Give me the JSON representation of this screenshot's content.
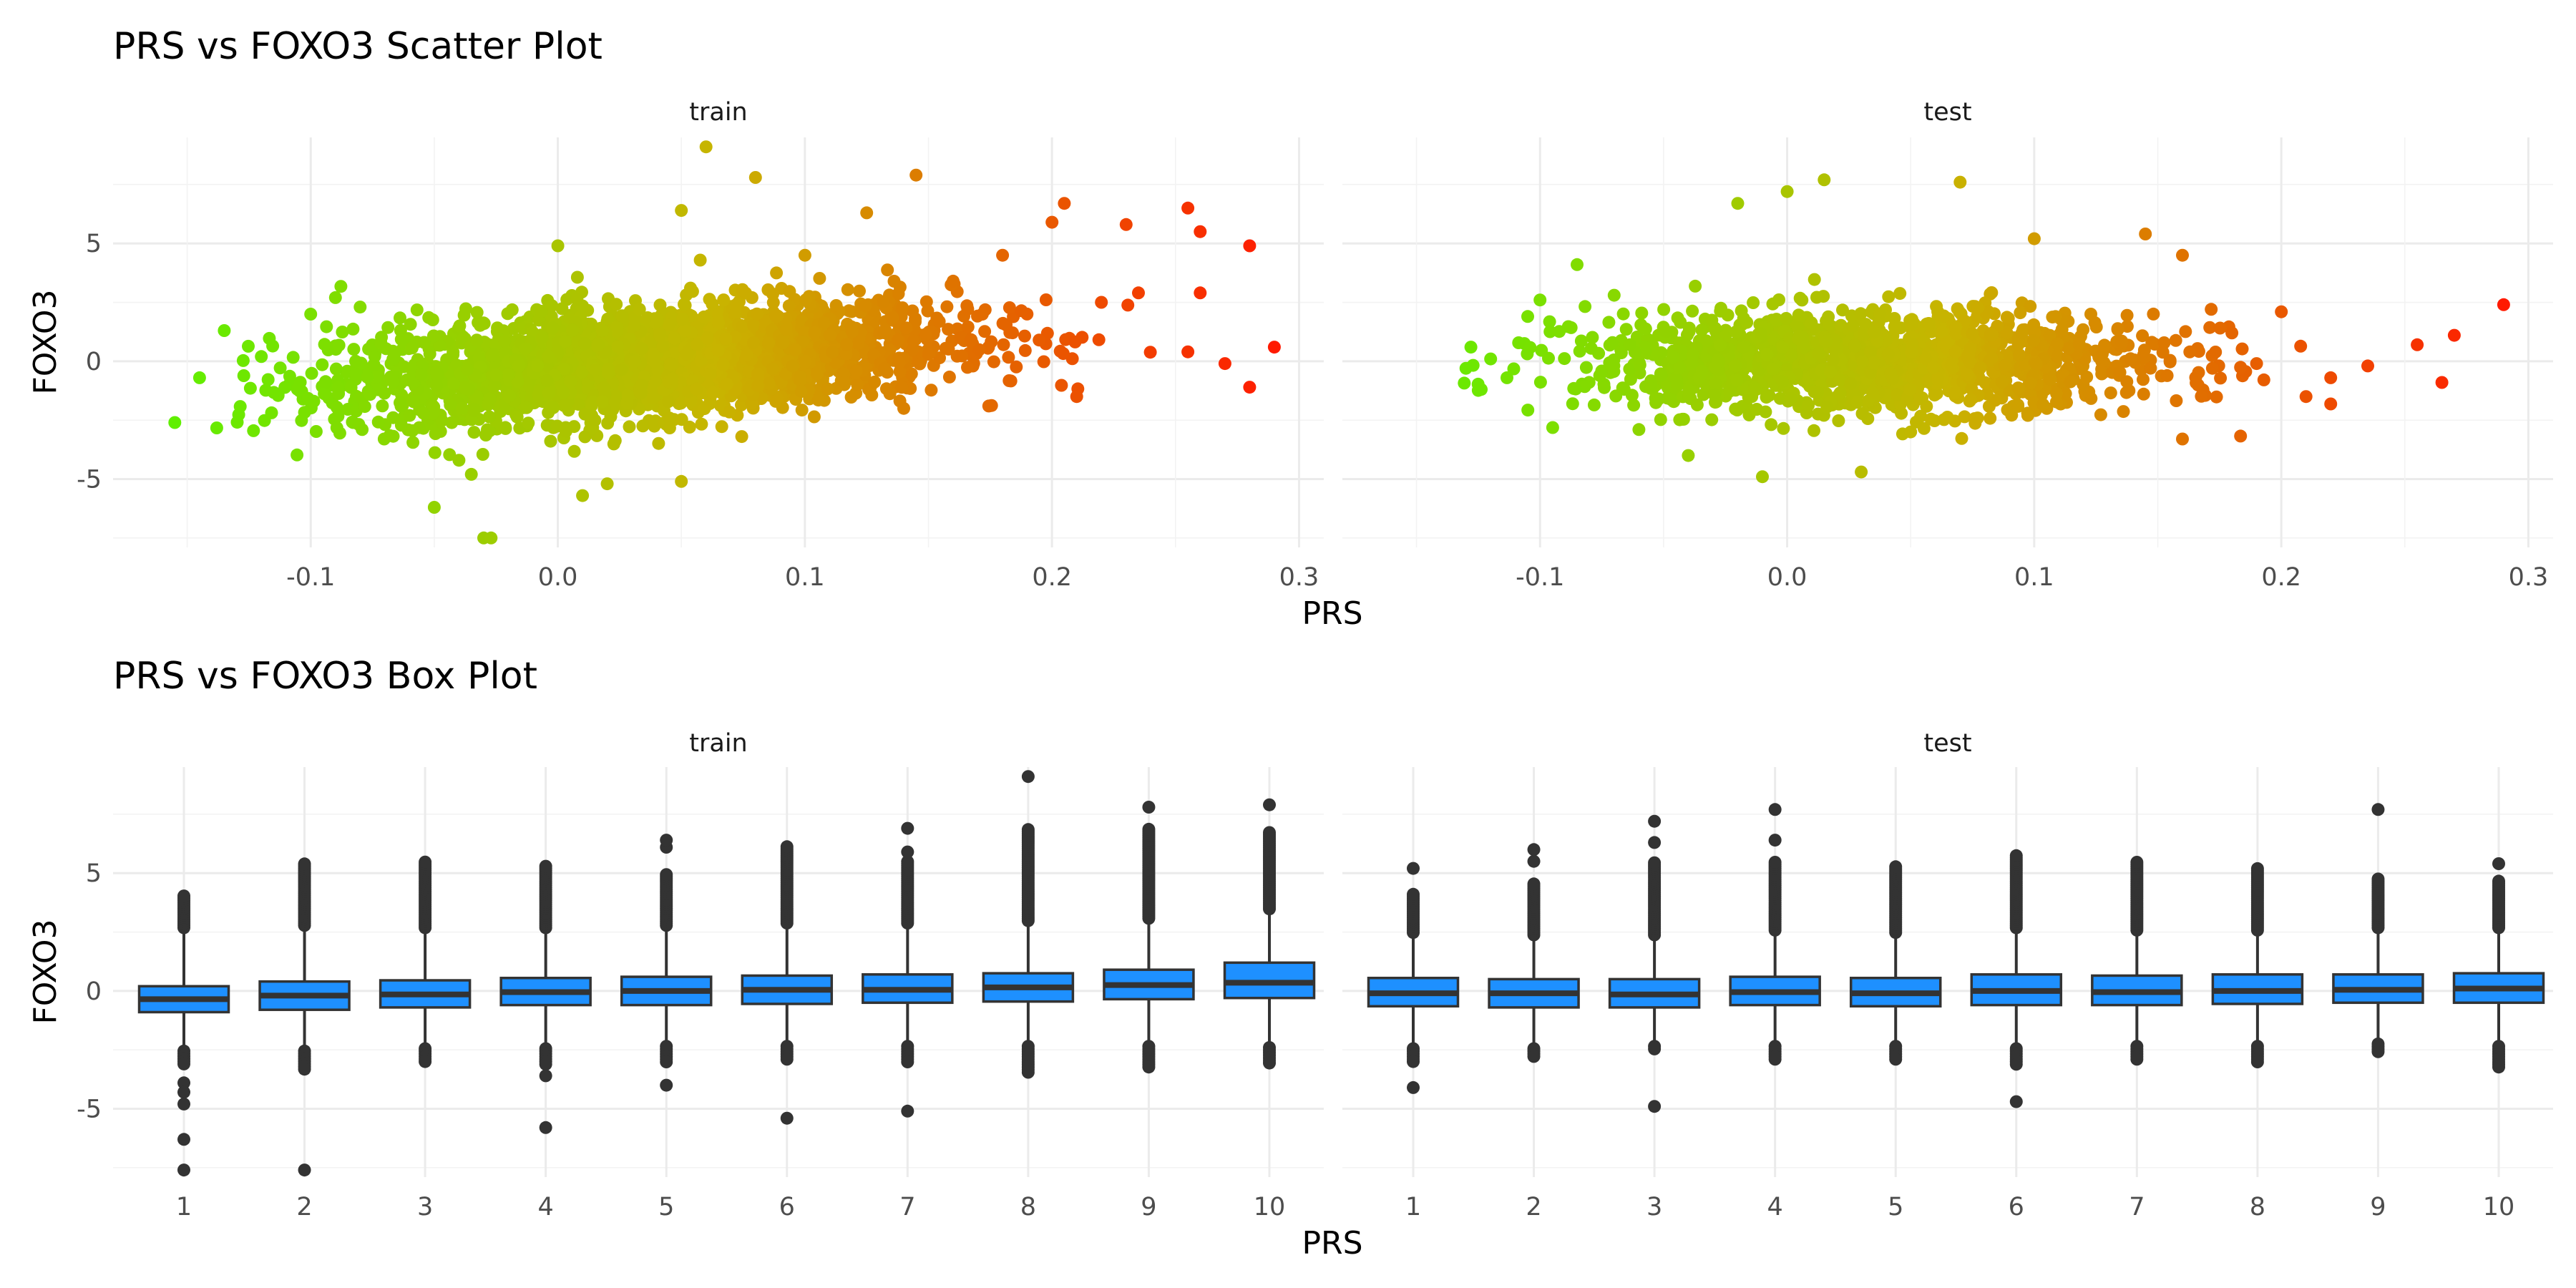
{
  "chart_data": [
    {
      "type": "scatter",
      "title": "PRS vs FOXO3 Scatter Plot",
      "xlabel": "PRS",
      "ylabel": "FOXO3",
      "facets": [
        "train",
        "test"
      ],
      "xlim": [
        -0.18,
        0.31
      ],
      "ylim": [
        -7.9,
        9.5
      ],
      "x_ticks": [
        -0.1,
        0.0,
        0.1,
        0.2,
        0.3
      ],
      "x_tick_labels": [
        "-0.1",
        "0.0",
        "0.1",
        "0.2",
        "0.3"
      ],
      "y_ticks": [
        -5,
        0,
        5
      ],
      "y_tick_labels": [
        "-5",
        "0",
        "5"
      ],
      "color_scale": {
        "low": "#5ef000",
        "mid": "#c8b400",
        "high": "#ff1a00",
        "range": [
          -0.16,
          0.29
        ]
      },
      "grid": true,
      "legend": "none",
      "series": [
        {
          "facet": "train",
          "points": [
            [
              -0.155,
              -2.6
            ],
            [
              -0.145,
              -0.7
            ],
            [
              -0.135,
              1.3
            ],
            [
              -0.1,
              2.0
            ],
            [
              -0.09,
              2.7
            ],
            [
              -0.05,
              -6.2
            ],
            [
              -0.035,
              -4.8
            ],
            [
              -0.03,
              -7.5
            ],
            [
              -0.027,
              -7.5
            ],
            [
              -0.04,
              -4.2
            ],
            [
              0.01,
              -5.7
            ],
            [
              0.02,
              -5.2
            ],
            [
              0.05,
              -5.1
            ],
            [
              0.06,
              9.1
            ],
            [
              0.08,
              7.8
            ],
            [
              0.125,
              6.3
            ],
            [
              0.145,
              7.9
            ],
            [
              0.205,
              6.7
            ],
            [
              0.255,
              6.5
            ],
            [
              0.26,
              5.5
            ],
            [
              0.28,
              4.9
            ],
            [
              0.27,
              -0.1
            ],
            [
              0.28,
              -1.1
            ],
            [
              0.29,
              0.6
            ],
            [
              0.26,
              2.9
            ],
            [
              0.255,
              0.4
            ],
            [
              0.235,
              2.9
            ],
            [
              0.23,
              5.8
            ],
            [
              0.22,
              2.5
            ],
            [
              0.2,
              5.9
            ],
            [
              0.18,
              4.5
            ],
            [
              0.16,
              3.4
            ],
            [
              0.14,
              -2.0
            ],
            [
              0.1,
              4.5
            ],
            [
              0.05,
              6.4
            ],
            [
              0.0,
              4.9
            ],
            [
              -0.06,
              -2.3
            ],
            [
              -0.12,
              0.2
            ],
            [
              -0.08,
              2.3
            ],
            [
              0.21,
              -1.5
            ]
          ]
        },
        {
          "facet": "test",
          "points": [
            [
              -0.13,
              -0.3
            ],
            [
              -0.128,
              0.6
            ],
            [
              -0.12,
              0.1
            ],
            [
              -0.1,
              2.6
            ],
            [
              -0.105,
              1.9
            ],
            [
              -0.085,
              4.1
            ],
            [
              -0.04,
              -4.0
            ],
            [
              -0.01,
              -4.9
            ],
            [
              0.03,
              -4.7
            ],
            [
              -0.02,
              6.7
            ],
            [
              0.0,
              7.2
            ],
            [
              0.015,
              7.7
            ],
            [
              0.07,
              7.6
            ],
            [
              0.16,
              4.5
            ],
            [
              0.145,
              5.4
            ],
            [
              0.16,
              -3.3
            ],
            [
              0.2,
              2.1
            ],
            [
              0.21,
              -1.5
            ],
            [
              0.22,
              -0.7
            ],
            [
              0.235,
              -0.2
            ],
            [
              0.255,
              0.7
            ],
            [
              0.265,
              -0.9
            ],
            [
              0.27,
              1.1
            ],
            [
              0.29,
              2.4
            ],
            [
              0.18,
              1.2
            ],
            [
              0.19,
              -0.1
            ],
            [
              -0.07,
              2.8
            ],
            [
              -0.06,
              -2.9
            ],
            [
              0.1,
              5.2
            ],
            [
              0.05,
              -3.0
            ]
          ]
        }
      ]
    },
    {
      "type": "box",
      "title": "PRS vs FOXO3 Box Plot",
      "xlabel": "PRS",
      "ylabel": "FOXO3",
      "facets": [
        "train",
        "test"
      ],
      "categories": [
        "1",
        "2",
        "3",
        "4",
        "5",
        "6",
        "7",
        "8",
        "9",
        "10"
      ],
      "ylim": [
        -7.9,
        9.5
      ],
      "y_ticks": [
        -5,
        0,
        5
      ],
      "y_tick_labels": [
        "-5",
        "0",
        "5"
      ],
      "box_color": "#1e90ff",
      "outline_color": "#333333",
      "grid": true,
      "legend": "none",
      "series": [
        {
          "facet": "train",
          "boxes": [
            {
              "q1": -0.9,
              "median": -0.35,
              "q3": 0.2,
              "wlow": -2.5,
              "whigh": 2.6,
              "out_low_from": -2.55,
              "out_low_to": -3.2,
              "out_high_to": 4.1,
              "extra_low": [
                -3.9,
                -4.3,
                -4.8,
                -6.3,
                -7.6
              ],
              "extra_high": []
            },
            {
              "q1": -0.8,
              "median": -0.2,
              "q3": 0.4,
              "wlow": -2.5,
              "whigh": 2.7,
              "out_low_from": -2.55,
              "out_low_to": -3.4,
              "out_high_to": 5.4,
              "extra_low": [
                -7.6
              ],
              "extra_high": []
            },
            {
              "q1": -0.7,
              "median": -0.15,
              "q3": 0.45,
              "wlow": -2.4,
              "whigh": 2.6,
              "out_low_from": -2.45,
              "out_low_to": -3.0,
              "out_high_to": 5.5,
              "extra_low": [],
              "extra_high": []
            },
            {
              "q1": -0.6,
              "median": -0.05,
              "q3": 0.55,
              "wlow": -2.4,
              "whigh": 2.6,
              "out_low_from": -2.45,
              "out_low_to": -3.2,
              "out_high_to": 5.3,
              "extra_low": [
                -3.6,
                -5.8
              ],
              "extra_high": []
            },
            {
              "q1": -0.6,
              "median": 0.0,
              "q3": 0.6,
              "wlow": -2.3,
              "whigh": 2.7,
              "out_low_from": -2.35,
              "out_low_to": -3.1,
              "out_high_to": 5.0,
              "extra_low": [
                -4.0
              ],
              "extra_high": [
                6.1,
                6.4
              ]
            },
            {
              "q1": -0.55,
              "median": 0.05,
              "q3": 0.65,
              "wlow": -2.3,
              "whigh": 2.8,
              "out_low_from": -2.35,
              "out_low_to": -3.0,
              "out_high_to": 6.2,
              "extra_low": [
                -5.4
              ],
              "extra_high": []
            },
            {
              "q1": -0.5,
              "median": 0.05,
              "q3": 0.7,
              "wlow": -2.3,
              "whigh": 2.8,
              "out_low_from": -2.35,
              "out_low_to": -3.1,
              "out_high_to": 5.5,
              "extra_low": [
                -5.1
              ],
              "extra_high": [
                5.9,
                6.9
              ]
            },
            {
              "q1": -0.45,
              "median": 0.15,
              "q3": 0.75,
              "wlow": -2.3,
              "whigh": 2.9,
              "out_low_from": -2.35,
              "out_low_to": -3.5,
              "out_high_to": 6.9,
              "extra_low": [],
              "extra_high": [
                9.1
              ]
            },
            {
              "q1": -0.35,
              "median": 0.25,
              "q3": 0.9,
              "wlow": -2.3,
              "whigh": 3.0,
              "out_low_from": -2.35,
              "out_low_to": -3.3,
              "out_high_to": 6.9,
              "extra_low": [],
              "extra_high": [
                7.8
              ]
            },
            {
              "q1": -0.3,
              "median": 0.35,
              "q3": 1.2,
              "wlow": -2.3,
              "whigh": 3.4,
              "out_low_from": -2.4,
              "out_low_to": -3.1,
              "out_high_to": 6.8,
              "extra_low": [],
              "extra_high": [
                7.9
              ]
            }
          ]
        },
        {
          "facet": "test",
          "boxes": [
            {
              "q1": -0.65,
              "median": -0.1,
              "q3": 0.55,
              "wlow": -2.4,
              "whigh": 2.4,
              "out_low_from": -2.45,
              "out_low_to": -3.0,
              "out_high_to": 4.1,
              "extra_low": [
                -4.1
              ],
              "extra_high": [
                5.2
              ]
            },
            {
              "q1": -0.7,
              "median": -0.1,
              "q3": 0.5,
              "wlow": -2.4,
              "whigh": 2.3,
              "out_low_from": -2.45,
              "out_low_to": -2.8,
              "out_high_to": 4.6,
              "extra_low": [],
              "extra_high": [
                5.5,
                6.0
              ]
            },
            {
              "q1": -0.7,
              "median": -0.15,
              "q3": 0.5,
              "wlow": -2.3,
              "whigh": 2.3,
              "out_low_from": -2.35,
              "out_low_to": -2.5,
              "out_high_to": 5.5,
              "extra_low": [
                -4.9
              ],
              "extra_high": [
                6.3,
                7.2
              ]
            },
            {
              "q1": -0.6,
              "median": -0.05,
              "q3": 0.6,
              "wlow": -2.3,
              "whigh": 2.5,
              "out_low_from": -2.35,
              "out_low_to": -2.9,
              "out_high_to": 5.5,
              "extra_low": [],
              "extra_high": [
                6.4,
                7.7
              ]
            },
            {
              "q1": -0.65,
              "median": -0.1,
              "q3": 0.55,
              "wlow": -2.3,
              "whigh": 2.4,
              "out_low_from": -2.35,
              "out_low_to": -3.0,
              "out_high_to": 5.3,
              "extra_low": [],
              "extra_high": []
            },
            {
              "q1": -0.6,
              "median": 0.0,
              "q3": 0.7,
              "wlow": -2.4,
              "whigh": 2.6,
              "out_low_from": -2.45,
              "out_low_to": -3.2,
              "out_high_to": 5.8,
              "extra_low": [
                -4.7
              ],
              "extra_high": []
            },
            {
              "q1": -0.6,
              "median": -0.05,
              "q3": 0.65,
              "wlow": -2.3,
              "whigh": 2.5,
              "out_low_from": -2.35,
              "out_low_to": -3.0,
              "out_high_to": 5.5,
              "extra_low": [],
              "extra_high": []
            },
            {
              "q1": -0.55,
              "median": 0.0,
              "q3": 0.7,
              "wlow": -2.3,
              "whigh": 2.5,
              "out_low_from": -2.35,
              "out_low_to": -3.1,
              "out_high_to": 5.2,
              "extra_low": [],
              "extra_high": []
            },
            {
              "q1": -0.5,
              "median": 0.05,
              "q3": 0.7,
              "wlow": -2.2,
              "whigh": 2.6,
              "out_low_from": -2.25,
              "out_low_to": -2.6,
              "out_high_to": 4.8,
              "extra_low": [],
              "extra_high": [
                7.7
              ]
            },
            {
              "q1": -0.5,
              "median": 0.1,
              "q3": 0.75,
              "wlow": -2.3,
              "whigh": 2.6,
              "out_low_from": -2.35,
              "out_low_to": -3.3,
              "out_high_to": 4.7,
              "extra_low": [],
              "extra_high": [
                5.4
              ]
            }
          ]
        }
      ]
    }
  ]
}
